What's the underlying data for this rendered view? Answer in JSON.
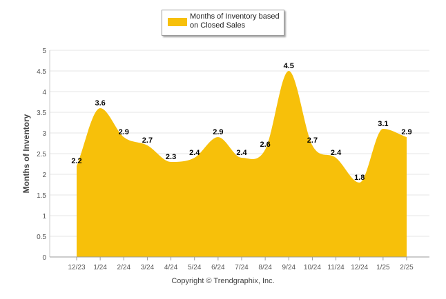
{
  "chart_data": {
    "type": "area",
    "categories": [
      "12/23",
      "1/24",
      "2/24",
      "3/24",
      "4/24",
      "5/24",
      "6/24",
      "7/24",
      "8/24",
      "9/24",
      "10/24",
      "11/24",
      "12/24",
      "1/25",
      "2/25"
    ],
    "series": [
      {
        "name": "Months of Inventory based on Closed Sales",
        "values": [
          2.2,
          3.6,
          2.9,
          2.7,
          2.3,
          2.4,
          2.9,
          2.4,
          2.6,
          4.5,
          2.7,
          2.4,
          1.8,
          3.1,
          2.9
        ],
        "color": "#f7c00a"
      }
    ],
    "data_labels": [
      "2.2",
      "3.6",
      "2.9",
      "2.7",
      "2.3",
      "2.4",
      "2.9",
      "2.4",
      "2.6",
      "4.5",
      "2.7",
      "2.4",
      "1.8",
      "3.1",
      "2.9"
    ],
    "ylabel": "Months of Inventory",
    "xlabel": "",
    "ylim": [
      0,
      5
    ],
    "yticks": [
      "0",
      "0.5",
      "1",
      "1.5",
      "2",
      "2.5",
      "3",
      "3.5",
      "4",
      "4.5",
      "5"
    ],
    "grid": true,
    "legend_position": "top-center"
  },
  "legend": {
    "label": "Months of Inventory based on Closed Sales",
    "color": "#f7c00a"
  },
  "footer": {
    "copyright": "Copyright © Trendgraphix, Inc."
  }
}
